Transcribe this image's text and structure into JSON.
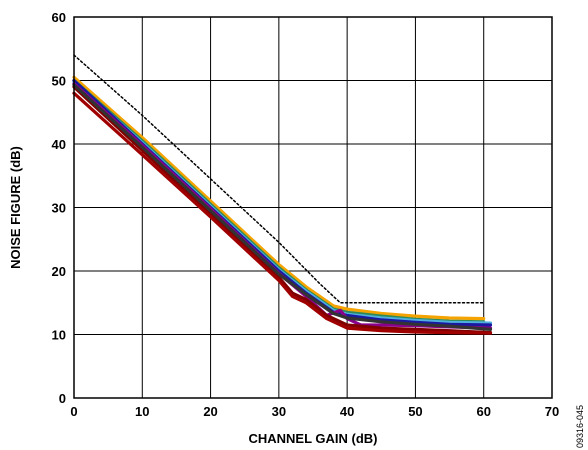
{
  "chart_data": {
    "type": "line",
    "xlabel": "CHANNEL GAIN (dB)",
    "ylabel": "NOISE FIGURE (dB)",
    "xlim": [
      0,
      70
    ],
    "ylim": [
      0,
      60
    ],
    "x_ticks": [
      0,
      10,
      20,
      30,
      40,
      50,
      60,
      70
    ],
    "y_ticks": [
      0,
      10,
      20,
      30,
      40,
      50,
      60
    ],
    "grid": true,
    "legend": "none",
    "figure_id": "09316-045",
    "series": [
      {
        "color": "#f5a300",
        "dashed": false,
        "points": [
          [
            0,
            50.5
          ],
          [
            10,
            41.0
          ],
          [
            20,
            31.0
          ],
          [
            30,
            21.0
          ],
          [
            34,
            17.5
          ],
          [
            38,
            14.5
          ],
          [
            40,
            14.0
          ],
          [
            45,
            13.3
          ],
          [
            50,
            12.9
          ],
          [
            55,
            12.6
          ],
          [
            60,
            12.5
          ]
        ]
      },
      {
        "color": "#2e8b57",
        "dashed": false,
        "points": [
          [
            0,
            50.0
          ],
          [
            10,
            40.5
          ],
          [
            20,
            30.5
          ],
          [
            30,
            20.5
          ],
          [
            34,
            17.0
          ],
          [
            38,
            14.0
          ],
          [
            40,
            13.5
          ],
          [
            45,
            12.9
          ],
          [
            50,
            12.4
          ],
          [
            55,
            12.1
          ],
          [
            60,
            12.0
          ]
        ]
      },
      {
        "color": "#4fb0e0",
        "dashed": false,
        "points": [
          [
            0,
            49.8
          ],
          [
            10,
            40.2
          ],
          [
            20,
            30.2
          ],
          [
            30,
            20.2
          ],
          [
            34,
            16.8
          ],
          [
            38,
            13.8
          ],
          [
            40,
            13.2
          ],
          [
            45,
            12.6
          ],
          [
            50,
            12.2
          ],
          [
            55,
            11.9
          ],
          [
            61,
            11.8
          ]
        ]
      },
      {
        "color": "#1a1aa0",
        "dashed": false,
        "points": [
          [
            0,
            50.0
          ],
          [
            10,
            40.0
          ],
          [
            20,
            30.0
          ],
          [
            30,
            20.0
          ],
          [
            34,
            16.5
          ],
          [
            38,
            13.5
          ],
          [
            40,
            13.0
          ],
          [
            45,
            12.3
          ],
          [
            50,
            11.9
          ],
          [
            55,
            11.6
          ],
          [
            61,
            11.5
          ]
        ]
      },
      {
        "color": "#8b008b",
        "dashed": false,
        "points": [
          [
            0,
            49.5
          ],
          [
            10,
            39.8
          ],
          [
            20,
            29.8
          ],
          [
            30,
            19.6
          ],
          [
            34,
            16.0
          ],
          [
            37,
            13.0
          ],
          [
            39,
            13.8
          ],
          [
            40,
            12.5
          ],
          [
            42,
            11.5
          ],
          [
            45,
            11.5
          ],
          [
            50,
            11.4
          ],
          [
            55,
            11.2
          ],
          [
            61,
            11.0
          ]
        ]
      },
      {
        "color": "#800000",
        "dashed": false,
        "points": [
          [
            0,
            49.0
          ],
          [
            10,
            39.0
          ],
          [
            20,
            29.0
          ],
          [
            30,
            19.0
          ],
          [
            32,
            16.5
          ],
          [
            34,
            15.5
          ],
          [
            37,
            13.0
          ],
          [
            40,
            11.5
          ],
          [
            45,
            11.0
          ],
          [
            50,
            10.8
          ],
          [
            55,
            10.6
          ],
          [
            61,
            10.3
          ]
        ]
      },
      {
        "color": "#a00000",
        "dashed": false,
        "points": [
          [
            0,
            48.0
          ],
          [
            10,
            38.3
          ],
          [
            20,
            28.5
          ],
          [
            30,
            18.5
          ],
          [
            32,
            16.0
          ],
          [
            34,
            15.0
          ],
          [
            37,
            12.5
          ],
          [
            40,
            11.0
          ],
          [
            45,
            10.6
          ],
          [
            50,
            10.4
          ],
          [
            55,
            10.3
          ],
          [
            61,
            10.2
          ]
        ]
      },
      {
        "color": "#333333",
        "dashed": false,
        "points": [
          [
            0,
            49.3
          ],
          [
            10,
            39.5
          ],
          [
            20,
            29.5
          ],
          [
            30,
            19.5
          ],
          [
            34,
            16.3
          ],
          [
            38,
            13.3
          ],
          [
            40,
            12.6
          ],
          [
            45,
            12.0
          ],
          [
            50,
            11.6
          ],
          [
            55,
            11.3
          ],
          [
            61,
            10.8
          ]
        ]
      },
      {
        "color": "#000000",
        "dashed": true,
        "points": [
          [
            0,
            54.0
          ],
          [
            10,
            44.5
          ],
          [
            20,
            34.5
          ],
          [
            30,
            24.5
          ],
          [
            36,
            18.0
          ],
          [
            39,
            15.0
          ],
          [
            40,
            15.0
          ],
          [
            50,
            15.0
          ],
          [
            60,
            15.0
          ]
        ]
      }
    ]
  }
}
